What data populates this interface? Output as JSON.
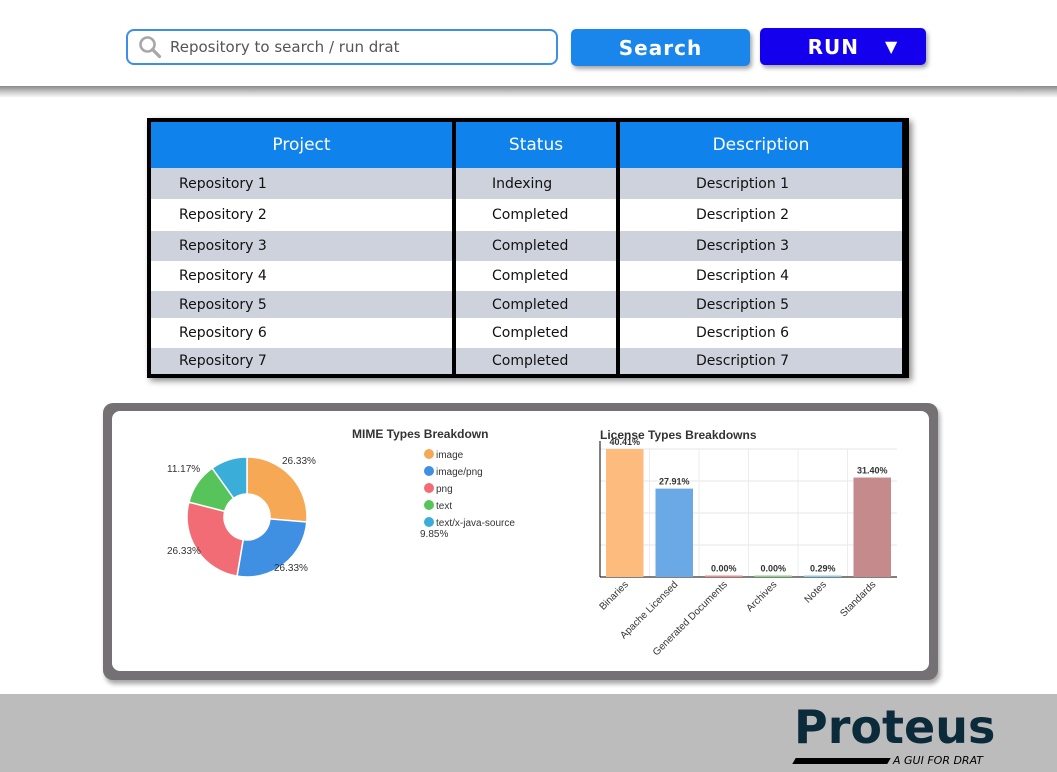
{
  "toolbar": {
    "search_placeholder": "Repository to search / run drat",
    "search_label": "Search",
    "run_label": "RUN",
    "run_caret": "▼"
  },
  "table": {
    "headers": [
      "Project",
      "Status",
      "Description"
    ],
    "rows": [
      {
        "project": "Repository 1",
        "status": "Indexing",
        "description": "Description 1"
      },
      {
        "project": "Repository 2",
        "status": "Completed",
        "description": "Description 2"
      },
      {
        "project": "Repository 3",
        "status": "Completed",
        "description": "Description 3"
      },
      {
        "project": "Repository 4",
        "status": "Completed",
        "description": "Description 4"
      },
      {
        "project": "Repository 5",
        "status": "Completed",
        "description": "Description 5"
      },
      {
        "project": "Repository 6",
        "status": "Completed",
        "description": "Description 6"
      },
      {
        "project": "Repository 7",
        "status": "Completed",
        "description": "Description 7"
      }
    ]
  },
  "chart_data": [
    {
      "type": "pie",
      "title": "MIME Types Breakdown",
      "categories": [
        "image",
        "image/png",
        "png",
        "text",
        "text/x-java-source"
      ],
      "values": [
        26.33,
        26.33,
        26.33,
        11.17,
        9.85
      ],
      "value_labels": [
        "26.33%",
        "26.33%",
        "26.33%",
        "11.17%",
        "9.85%"
      ],
      "colors": [
        "#f7a854",
        "#3f8fe3",
        "#f26c76",
        "#56c45a",
        "#3aaed8"
      ],
      "legend": "right"
    },
    {
      "type": "bar",
      "title": "License Types Breakdowns",
      "categories": [
        "Binaries",
        "Apache Licensed",
        "Generated Documents",
        "Archives",
        "Notes",
        "Standards"
      ],
      "values": [
        40.41,
        27.91,
        0.0,
        0.0,
        0.29,
        31.4
      ],
      "value_labels": [
        "40.41%",
        "27.91%",
        "0.00%",
        "0.00%",
        "0.29%",
        "31.40%"
      ],
      "colors": [
        "#fdbb7d",
        "#6aa8e6",
        "#f08a8a",
        "#8bd18a",
        "#8ccbe6",
        "#c48a8c"
      ],
      "ylim": [
        0,
        40.41
      ],
      "grid": true
    }
  ],
  "footer": {
    "brand": "Proteus",
    "tagline": "A GUI FOR DRAT"
  }
}
